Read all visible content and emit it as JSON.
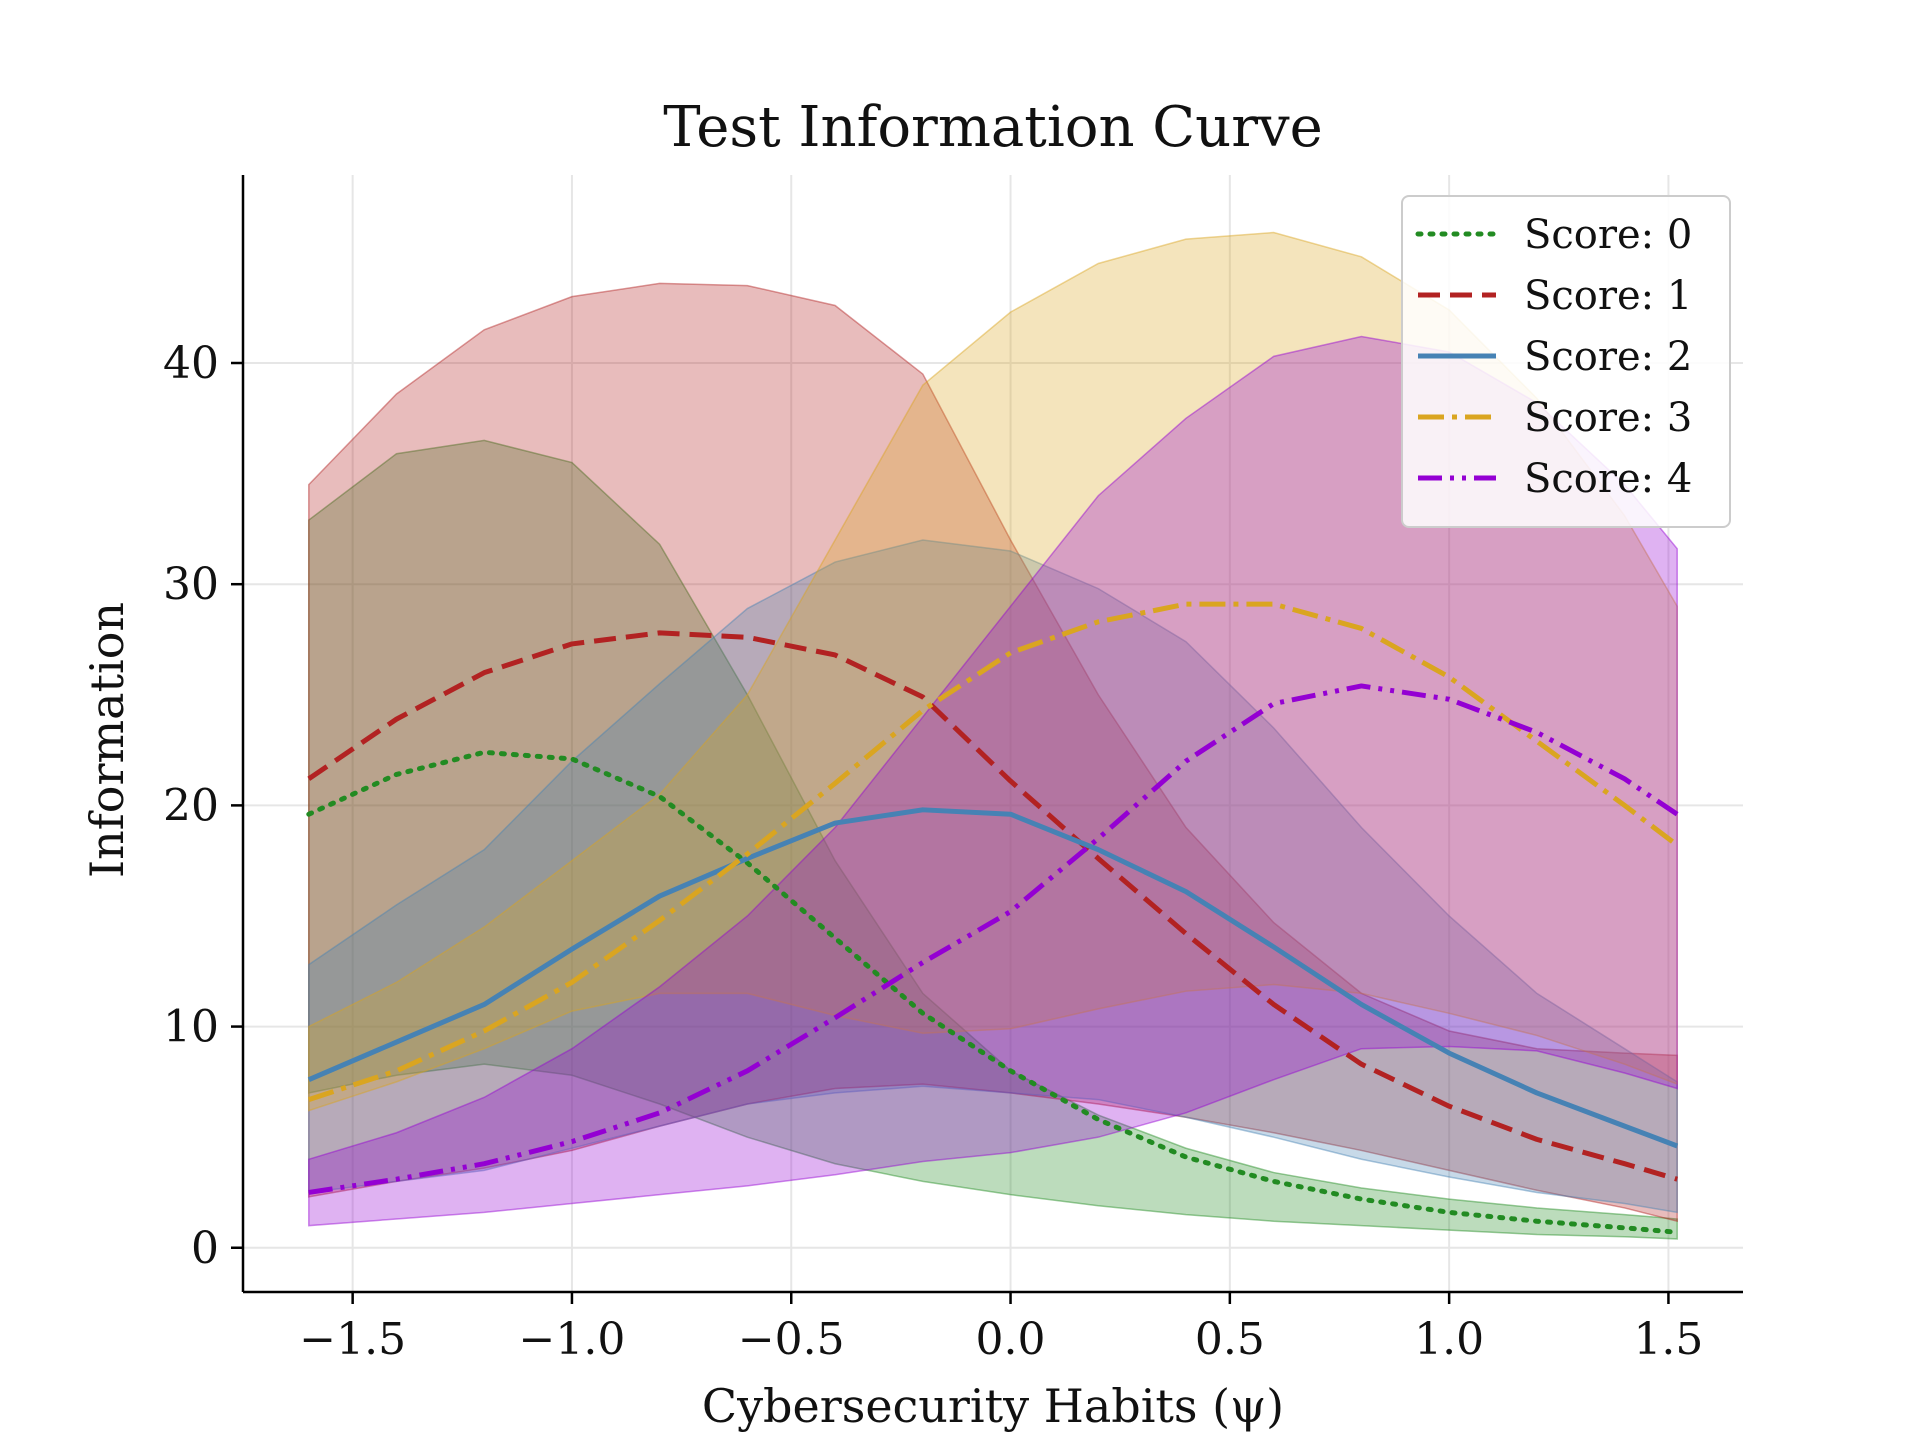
{
  "chart_data": {
    "type": "line",
    "title": "Test Information Curve",
    "xlabel": "Cybersecurity Habits (ψ)",
    "ylabel": "Information",
    "xlim": [
      -1.75,
      1.67
    ],
    "ylim": [
      -2,
      48.5
    ],
    "xticks": [
      -1.5,
      -1.0,
      -0.5,
      0.0,
      0.5,
      1.0,
      1.5
    ],
    "xtick_labels": [
      "−1.5",
      "−1.0",
      "−0.5",
      "0.0",
      "0.5",
      "1.0",
      "1.5"
    ],
    "yticks": [
      0,
      10,
      20,
      30,
      40
    ],
    "ytick_labels": [
      "0",
      "10",
      "20",
      "30",
      "40"
    ],
    "grid": true,
    "legend_position": "top-right",
    "x": [
      -1.6,
      -1.4,
      -1.2,
      -1.0,
      -0.8,
      -0.6,
      -0.4,
      -0.2,
      0.0,
      0.2,
      0.4,
      0.6,
      0.8,
      1.0,
      1.2,
      1.4,
      1.52
    ],
    "series": [
      {
        "name": "Score: 0",
        "color": "#228B22",
        "dash": "dotted",
        "values": [
          19.6,
          21.4,
          22.4,
          22.1,
          20.4,
          17.4,
          14.0,
          10.6,
          8.0,
          5.8,
          4.1,
          3.0,
          2.2,
          1.6,
          1.2,
          0.9,
          0.7
        ],
        "band_upper": [
          32.9,
          35.9,
          36.5,
          35.5,
          31.8,
          25.0,
          17.5,
          11.5,
          8.0,
          6.0,
          4.5,
          3.4,
          2.7,
          2.2,
          1.8,
          1.5,
          1.3
        ],
        "band_lower": [
          7.0,
          7.8,
          8.3,
          7.8,
          6.5,
          5.0,
          3.8,
          3.0,
          2.4,
          1.9,
          1.5,
          1.2,
          1.0,
          0.8,
          0.6,
          0.5,
          0.4
        ]
      },
      {
        "name": "Score: 1",
        "color": "#B22222",
        "dash": "dashed",
        "values": [
          21.2,
          23.9,
          26.0,
          27.3,
          27.8,
          27.6,
          26.8,
          24.9,
          21.1,
          17.6,
          14.2,
          11.0,
          8.3,
          6.4,
          4.9,
          3.8,
          3.1
        ],
        "band_upper": [
          34.5,
          38.6,
          41.5,
          43.0,
          43.6,
          43.5,
          42.6,
          39.5,
          32.0,
          25.0,
          19.0,
          14.7,
          11.5,
          9.8,
          9.0,
          8.8,
          8.7
        ],
        "band_lower": [
          2.3,
          3.0,
          3.6,
          4.4,
          5.5,
          6.5,
          7.2,
          7.4,
          7.0,
          6.5,
          5.9,
          5.2,
          4.4,
          3.5,
          2.6,
          1.8,
          1.2
        ]
      },
      {
        "name": "Score: 2",
        "color": "#4682B4",
        "dash": "solid",
        "values": [
          7.6,
          9.3,
          11.0,
          13.5,
          15.9,
          17.6,
          19.2,
          19.8,
          19.6,
          18.0,
          16.1,
          13.6,
          11.0,
          8.8,
          7.0,
          5.5,
          4.6
        ],
        "band_upper": [
          12.8,
          15.5,
          18.0,
          22.0,
          25.5,
          28.9,
          31.0,
          32.0,
          31.5,
          29.8,
          27.4,
          23.5,
          19.0,
          15.0,
          11.5,
          9.0,
          7.5
        ],
        "band_lower": [
          2.5,
          3.0,
          3.5,
          4.5,
          5.5,
          6.5,
          7.0,
          7.3,
          7.0,
          6.7,
          5.9,
          5.0,
          4.0,
          3.2,
          2.5,
          2.0,
          1.6
        ]
      },
      {
        "name": "Score: 3",
        "color": "#DAA520",
        "dash": "dashdot",
        "values": [
          6.7,
          8.0,
          9.8,
          12.0,
          14.8,
          17.8,
          21.0,
          24.3,
          26.9,
          28.3,
          29.1,
          29.1,
          28.0,
          25.8,
          22.9,
          20.0,
          18.2
        ],
        "band_upper": [
          10.0,
          12.0,
          14.5,
          17.5,
          20.5,
          25.0,
          32.0,
          39.0,
          42.3,
          44.5,
          45.6,
          45.9,
          44.8,
          42.4,
          38.4,
          33.1,
          29.0
        ],
        "band_lower": [
          6.2,
          7.5,
          9.0,
          10.7,
          11.5,
          11.5,
          10.5,
          9.7,
          9.9,
          10.8,
          11.6,
          11.9,
          11.5,
          10.6,
          9.6,
          8.3,
          7.4
        ]
      },
      {
        "name": "Score: 4",
        "color": "#9400D3",
        "dash": "dashdotdot",
        "values": [
          2.5,
          3.1,
          3.8,
          4.8,
          6.1,
          8.0,
          10.4,
          12.9,
          15.2,
          18.5,
          22.0,
          24.6,
          25.4,
          24.8,
          23.3,
          21.2,
          19.6
        ],
        "band_upper": [
          4.0,
          5.2,
          6.8,
          9.0,
          11.8,
          15.0,
          19.0,
          24.0,
          29.0,
          34.0,
          37.5,
          40.3,
          41.2,
          40.5,
          38.2,
          34.5,
          31.6
        ],
        "band_lower": [
          1.0,
          1.3,
          1.6,
          2.0,
          2.4,
          2.8,
          3.3,
          3.9,
          4.3,
          5.0,
          6.1,
          7.6,
          9.0,
          9.1,
          8.9,
          7.9,
          7.2
        ]
      }
    ]
  }
}
